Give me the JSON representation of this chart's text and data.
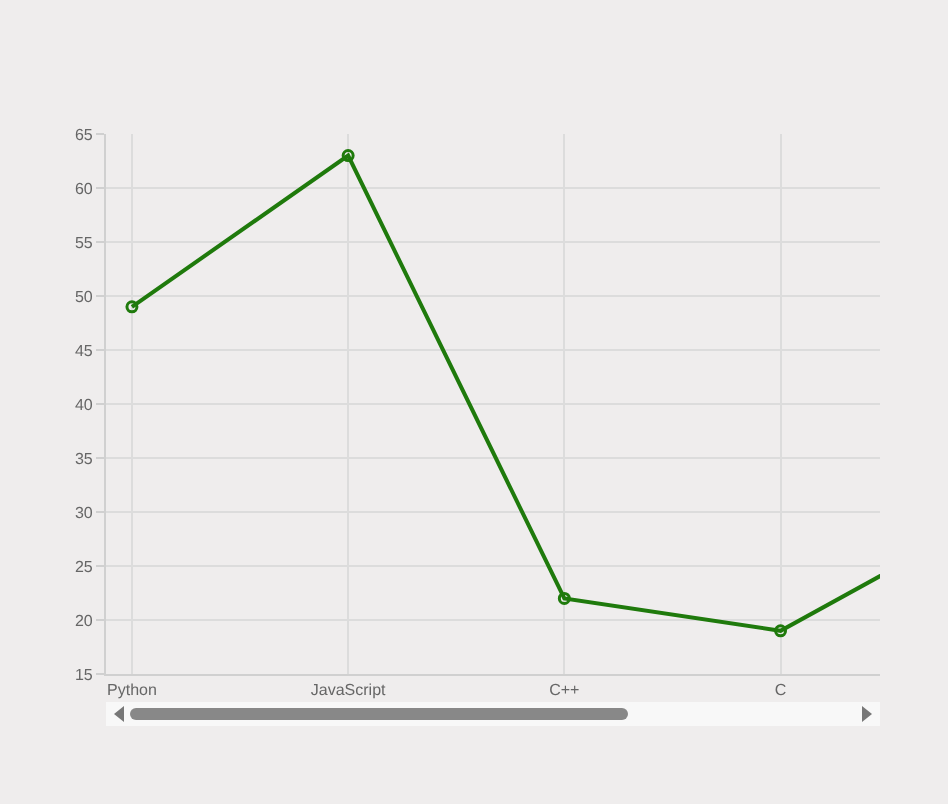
{
  "chart_data": {
    "type": "line",
    "categories": [
      "Python",
      "JavaScript",
      "C++",
      "C",
      null
    ],
    "series": [
      {
        "color": "#1f7a0c",
        "values": [
          49,
          63,
          22,
          19,
          30
        ]
      }
    ],
    "ylim": [
      15,
      65
    ],
    "yticks": [
      15,
      20,
      25,
      30,
      35,
      40,
      45,
      50,
      55,
      60,
      65
    ],
    "grid": true,
    "marker": "circle",
    "line_style": "solid"
  }
}
